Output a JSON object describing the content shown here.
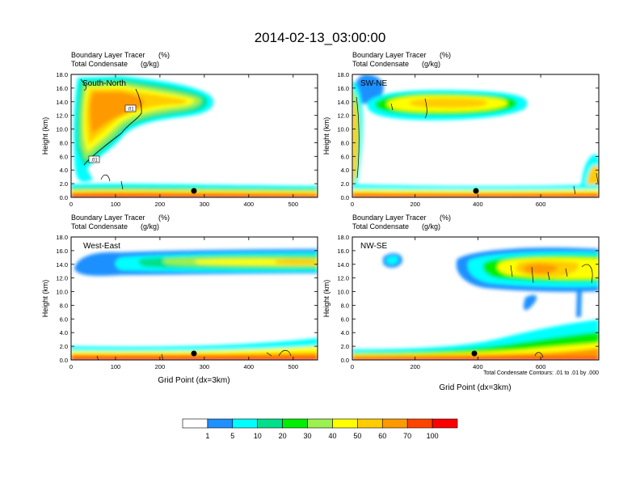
{
  "figure": {
    "title": "2014-02-13_03:00:00",
    "footnote": "Total Condensate Contours: .01 to .01 by .000"
  },
  "colorbar": {
    "labels": [
      "1",
      "5",
      "10",
      "20",
      "30",
      "40",
      "50",
      "60",
      "70",
      "100"
    ],
    "colors": [
      "#ffffff",
      "#1e90ff",
      "#00ffff",
      "#00e08a",
      "#00ee00",
      "#9cf050",
      "#ffff00",
      "#ffcc00",
      "#ff9900",
      "#ff4400",
      "#ff0000"
    ]
  },
  "chart_data": [
    {
      "type": "heatmap",
      "panel_label": "South-North",
      "subtitle_line1": "Boundary Layer Tracer",
      "subtitle_unit1": "(%)",
      "subtitle_line2": "Total Condensate",
      "subtitle_unit2": "(g/kg)",
      "ylabel": "Height (km)",
      "xlabel": "",
      "xlim": [
        0,
        555
      ],
      "ylim": [
        0,
        18
      ],
      "xticks": [
        "0",
        "100",
        "200",
        "300",
        "400",
        "500"
      ],
      "yticks": [
        "0.0",
        "2.0",
        "4.0",
        "6.0",
        "8.0",
        "10.0",
        "12.0",
        "14.0",
        "16.0",
        "18.0"
      ],
      "contour_labels": [
        ".01",
        ".01"
      ],
      "marker": {
        "x": 278,
        "y": 1.0
      }
    },
    {
      "type": "heatmap",
      "panel_label": "SW-NE",
      "subtitle_line1": "Boundary Layer Tracer",
      "subtitle_unit1": "(%)",
      "subtitle_line2": "Total Condensate",
      "subtitle_unit2": "(g/kg)",
      "ylabel": "Height (km)",
      "xlabel": "",
      "xlim": [
        0,
        785
      ],
      "ylim": [
        0,
        18
      ],
      "xticks": [
        "0",
        "200",
        "400",
        "600"
      ],
      "yticks": [
        "0.0",
        "2.0",
        "4.0",
        "6.0",
        "8.0",
        "10.0",
        "12.0",
        "14.0",
        "16.0",
        "18.0"
      ],
      "contour_labels": [],
      "marker": {
        "x": 393,
        "y": 1.0
      }
    },
    {
      "type": "heatmap",
      "panel_label": "West-East",
      "subtitle_line1": "Boundary Layer Tracer",
      "subtitle_unit1": "(%)",
      "subtitle_line2": "Total Condensate",
      "subtitle_unit2": "(g/kg)",
      "ylabel": "Height (km)",
      "xlabel": "Grid Point (dx=3km)",
      "xlim": [
        0,
        555
      ],
      "ylim": [
        0,
        18
      ],
      "xticks": [
        "0",
        "100",
        "200",
        "300",
        "400",
        "500"
      ],
      "yticks": [
        "0.0",
        "2.0",
        "4.0",
        "6.0",
        "8.0",
        "10.0",
        "12.0",
        "14.0",
        "16.0",
        "18.0"
      ],
      "contour_labels": [],
      "marker": {
        "x": 278,
        "y": 1.0
      }
    },
    {
      "type": "heatmap",
      "panel_label": "NW-SE",
      "subtitle_line1": "Boundary Layer Tracer",
      "subtitle_unit1": "(%)",
      "subtitle_line2": "Total Condensate",
      "subtitle_unit2": "(g/kg)",
      "ylabel": "Height (km)",
      "xlabel": "Grid Point (dx=3km)",
      "xlim": [
        0,
        785
      ],
      "ylim": [
        0,
        18
      ],
      "xticks": [
        "0",
        "200",
        "400",
        "600"
      ],
      "yticks": [
        "0.0",
        "2.0",
        "4.0",
        "6.0",
        "8.0",
        "10.0",
        "12.0",
        "14.0",
        "16.0",
        "18.0"
      ],
      "contour_labels": [],
      "marker": {
        "x": 393,
        "y": 1.0
      }
    }
  ]
}
